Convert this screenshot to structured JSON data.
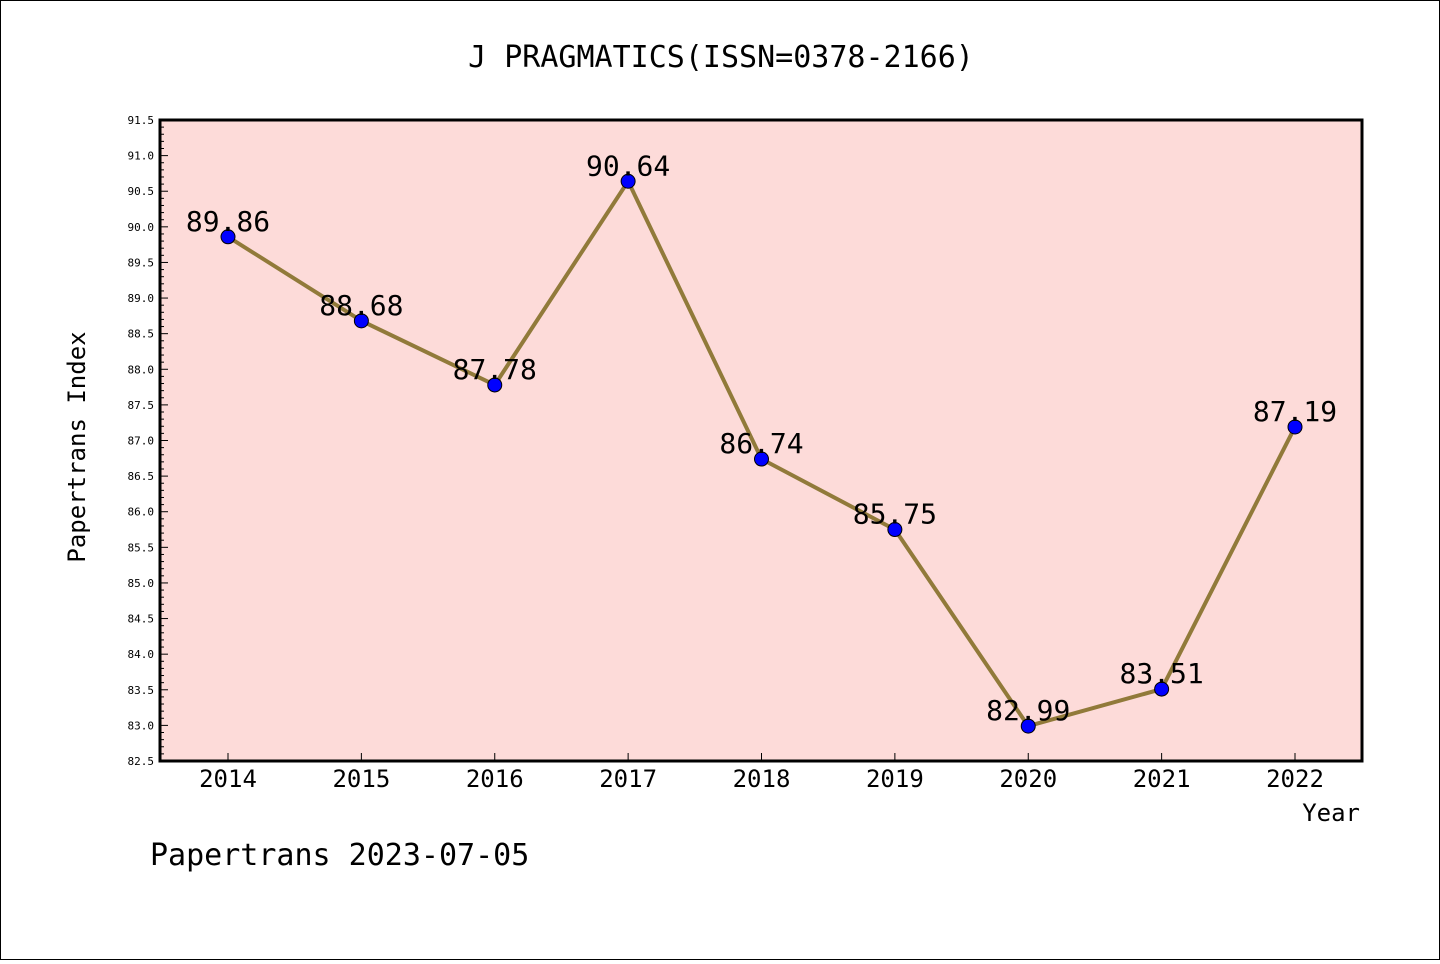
{
  "chart_data": {
    "type": "line",
    "title": "J PRAGMATICS(ISSN=0378-2166)",
    "xlabel": "Year",
    "ylabel": "Papertrans Index",
    "categories": [
      "2014",
      "2015",
      "2016",
      "2017",
      "2018",
      "2019",
      "2020",
      "2021",
      "2022"
    ],
    "values": [
      89.86,
      88.68,
      87.78,
      90.64,
      86.74,
      85.75,
      82.99,
      83.51,
      87.19
    ],
    "value_labels": [
      "89.86",
      "88.68",
      "87.78",
      "90.64",
      "86.74",
      "85.75",
      "82.99",
      "83.51",
      "87.19"
    ],
    "ylim": [
      82.5,
      91.5
    ],
    "yticks": [
      "82.5",
      "83.0",
      "83.5",
      "84.0",
      "84.5",
      "85.0",
      "85.5",
      "86.0",
      "86.5",
      "87.0",
      "87.5",
      "88.0",
      "88.5",
      "89.0",
      "89.5",
      "90.0",
      "90.5",
      "91.0",
      "91.5"
    ],
    "grid": false,
    "colors": {
      "plot_background": "#fddbd9",
      "line": "#917a3a",
      "marker": "#0000ff"
    }
  },
  "footer": "Papertrans 2023-07-05"
}
